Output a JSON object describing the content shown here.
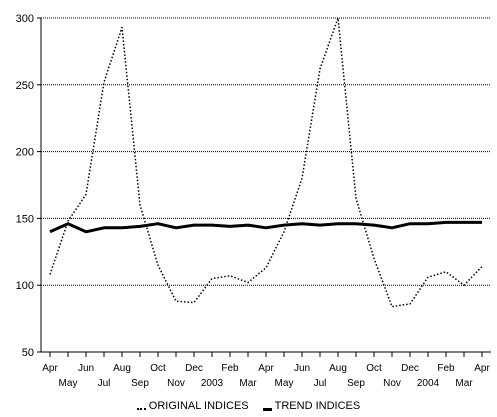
{
  "chart_data": {
    "type": "line",
    "title": "",
    "xlabel": "",
    "ylabel": "",
    "ylim": [
      50,
      300
    ],
    "yticks": [
      50,
      100,
      150,
      200,
      250,
      300
    ],
    "grid": "horizontal-dotted",
    "legend_position": "bottom",
    "x": [
      "Apr",
      "May",
      "Jun",
      "Jul",
      "Aug",
      "Sep",
      "Oct",
      "Nov",
      "Dec",
      "2003",
      "Feb",
      "Mar",
      "Apr",
      "May",
      "Jun",
      "Jul",
      "Aug",
      "Sep",
      "Oct",
      "Nov",
      "Dec",
      "2004",
      "Feb",
      "Mar",
      "Apr"
    ],
    "series": [
      {
        "name": "ORIGINAL INDICES",
        "style": "dotted",
        "color": "#000000",
        "values": [
          108,
          148,
          168,
          252,
          293,
          160,
          115,
          88,
          87,
          105,
          107,
          102,
          113,
          140,
          180,
          262,
          300,
          165,
          120,
          84,
          86,
          106,
          110,
          100,
          114
        ]
      },
      {
        "name": "TREND INDICES",
        "style": "solid",
        "color": "#000000",
        "values": [
          140,
          146,
          140,
          143,
          143,
          144,
          146,
          143,
          145,
          145,
          144,
          145,
          143,
          145,
          146,
          145,
          146,
          146,
          145,
          143,
          146,
          146,
          147,
          147,
          147
        ]
      }
    ]
  }
}
